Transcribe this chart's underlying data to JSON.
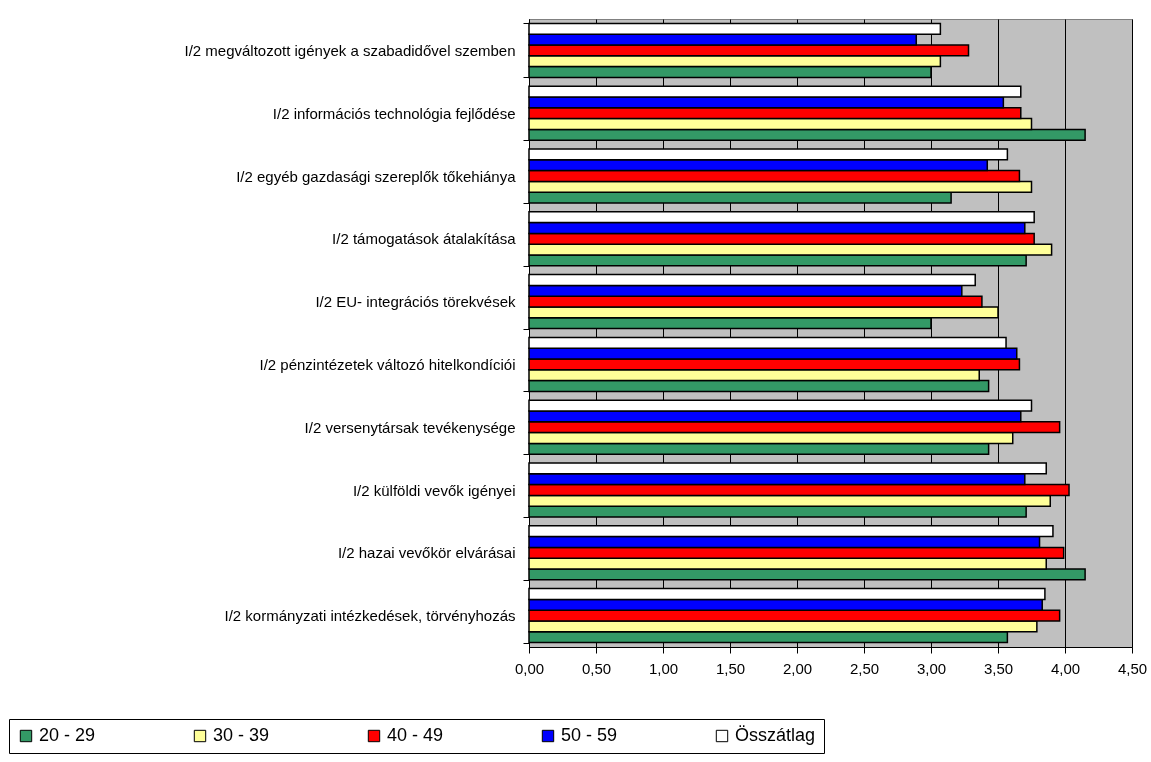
{
  "chart_data": {
    "type": "bar",
    "orientation": "horizontal",
    "grid": "x",
    "legend": "bottom left",
    "categories": [
      "I/2 megváltozott igények a szabadidővel szemben",
      "I/2 információs technológia fejlődése",
      "I/2 egyéb gazdasági szereplők tőkehiánya",
      "I/2 támogatások átalakítása",
      "I/2 EU- integrációs törekvések",
      "I/2 pénzintézetek változó hitelkondíciói",
      "I/2 versenytársak tevékenysége",
      "I/2 külföldi vevők igényei",
      "I/2 hazai vevőkör elvárásai",
      "I/2 kormányzati intézkedések, törvényhozás"
    ],
    "series": [
      {
        "name": "20 - 29",
        "color": "#339966",
        "values": [
          3.0,
          4.15,
          3.15,
          3.71,
          3.0,
          3.43,
          3.43,
          3.71,
          4.15,
          3.57
        ]
      },
      {
        "name": "30 - 39",
        "color": "#ffff99",
        "values": [
          3.07,
          3.75,
          3.75,
          3.9,
          3.5,
          3.36,
          3.61,
          3.89,
          3.86,
          3.79
        ]
      },
      {
        "name": "40 - 49",
        "color": "#ff0000",
        "values": [
          3.28,
          3.67,
          3.66,
          3.77,
          3.38,
          3.66,
          3.96,
          4.03,
          3.99,
          3.96
        ]
      },
      {
        "name": "50 - 59",
        "color": "#0000ff",
        "values": [
          2.89,
          3.54,
          3.42,
          3.7,
          3.23,
          3.64,
          3.67,
          3.7,
          3.81,
          3.83
        ]
      },
      {
        "name": "Összátlag",
        "color": "#ffffff",
        "values": [
          3.07,
          3.67,
          3.57,
          3.77,
          3.33,
          3.56,
          3.75,
          3.86,
          3.91,
          3.85
        ]
      }
    ],
    "xlim": [
      0,
      4.5
    ],
    "xticks": [
      {
        "value": 0,
        "label": "0,00"
      },
      {
        "value": 0.5,
        "label": "0,50"
      },
      {
        "value": 1,
        "label": "1,00"
      },
      {
        "value": 1.5,
        "label": "1,50"
      },
      {
        "value": 2,
        "label": "2,00"
      },
      {
        "value": 2.5,
        "label": "2,50"
      },
      {
        "value": 3,
        "label": "3,00"
      },
      {
        "value": 3.5,
        "label": "3,50"
      },
      {
        "value": 4,
        "label": "4,00"
      },
      {
        "value": 4.5,
        "label": "4,50"
      }
    ]
  }
}
